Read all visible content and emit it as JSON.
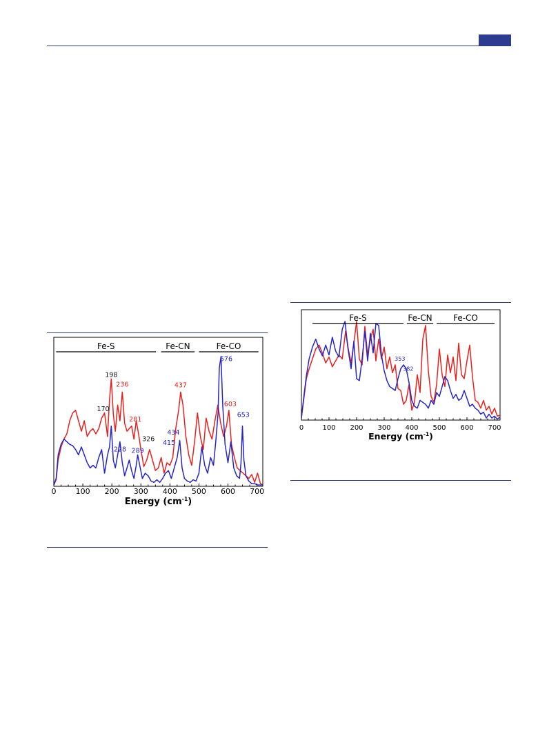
{
  "page": {
    "header_tab_color": "#2d3c8e",
    "rule_color": "#2e3a78"
  },
  "chart_data": [
    {
      "type": "line",
      "xlabel": "Energy (cm",
      "xlabel_sup": "-1",
      "xlabel_tail": ")",
      "xlim": [
        0,
        720
      ],
      "ylim": [
        0,
        1
      ],
      "x_ticks": [
        "0",
        "100",
        "200",
        "300",
        "400",
        "500",
        "600",
        "700"
      ],
      "regions": [
        {
          "label": "Fe-S",
          "from": 8,
          "to": 352
        },
        {
          "label": "Fe-CN",
          "from": 370,
          "to": 485
        },
        {
          "label": "Fe-CO",
          "from": 500,
          "to": 705
        }
      ],
      "peak_labels": [
        {
          "text": "198",
          "x": 198,
          "y": 0.835,
          "color": "#111111"
        },
        {
          "text": "236",
          "x": 236,
          "y": 0.76,
          "color": "#e0201c"
        },
        {
          "text": "170",
          "x": 170,
          "y": 0.575,
          "color": "#111111"
        },
        {
          "text": "281",
          "x": 281,
          "y": 0.495,
          "color": "#e0201c"
        },
        {
          "text": "326",
          "x": 326,
          "y": 0.345,
          "color": "#111111"
        },
        {
          "text": "228",
          "x": 228,
          "y": 0.265,
          "color": "#2323c8"
        },
        {
          "text": "289",
          "x": 289,
          "y": 0.255,
          "color": "#2323c8"
        },
        {
          "text": "437",
          "x": 437,
          "y": 0.755,
          "color": "#e0201c"
        },
        {
          "text": "434",
          "x": 412,
          "y": 0.395,
          "color": "#2323c8"
        },
        {
          "text": "415",
          "x": 397,
          "y": 0.315,
          "color": "#2323c8"
        },
        {
          "text": "576",
          "x": 594,
          "y": 0.955,
          "color": "#2323c8"
        },
        {
          "text": "603",
          "x": 608,
          "y": 0.61,
          "color": "#e0201c"
        },
        {
          "text": "653",
          "x": 653,
          "y": 0.53,
          "color": "#2323c8"
        }
      ],
      "series": [
        {
          "color": "#e8211d",
          "x": [
            0,
            8,
            15,
            25,
            35,
            45,
            55,
            65,
            75,
            85,
            95,
            105,
            115,
            125,
            135,
            145,
            155,
            165,
            175,
            185,
            192,
            198,
            205,
            212,
            220,
            228,
            236,
            244,
            252,
            260,
            268,
            276,
            284,
            292,
            300,
            310,
            320,
            330,
            340,
            350,
            360,
            370,
            380,
            390,
            400,
            410,
            420,
            430,
            437,
            445,
            455,
            465,
            475,
            485,
            495,
            505,
            515,
            525,
            535,
            545,
            555,
            565,
            575,
            585,
            595,
            603,
            612,
            622,
            632,
            642,
            652,
            662,
            672,
            682,
            692,
            702,
            712,
            720
          ],
          "y": [
            0.01,
            0.05,
            0.2,
            0.3,
            0.36,
            0.4,
            0.5,
            0.56,
            0.58,
            0.5,
            0.42,
            0.5,
            0.38,
            0.42,
            0.44,
            0.4,
            0.44,
            0.52,
            0.56,
            0.38,
            0.66,
            0.82,
            0.55,
            0.42,
            0.62,
            0.5,
            0.72,
            0.48,
            0.42,
            0.44,
            0.46,
            0.36,
            0.5,
            0.4,
            0.28,
            0.15,
            0.2,
            0.28,
            0.2,
            0.12,
            0.14,
            0.22,
            0.1,
            0.18,
            0.16,
            0.22,
            0.44,
            0.58,
            0.72,
            0.62,
            0.38,
            0.24,
            0.16,
            0.34,
            0.56,
            0.38,
            0.28,
            0.52,
            0.42,
            0.36,
            0.5,
            0.62,
            0.48,
            0.38,
            0.46,
            0.58,
            0.32,
            0.22,
            0.14,
            0.12,
            0.1,
            0.08,
            0.06,
            0.09,
            0.03,
            0.1,
            0.02,
            0.01
          ]
        },
        {
          "color": "#2525c8",
          "x": [
            0,
            8,
            15,
            25,
            35,
            45,
            55,
            65,
            75,
            85,
            95,
            105,
            115,
            125,
            135,
            145,
            155,
            165,
            175,
            185,
            192,
            198,
            205,
            212,
            220,
            228,
            236,
            244,
            252,
            260,
            268,
            276,
            284,
            289,
            296,
            305,
            315,
            325,
            335,
            345,
            355,
            365,
            375,
            385,
            395,
            405,
            415,
            425,
            434,
            442,
            450,
            460,
            470,
            480,
            490,
            500,
            510,
            520,
            530,
            540,
            550,
            558,
            566,
            570,
            576,
            582,
            590,
            600,
            610,
            620,
            630,
            640,
            645,
            650,
            655,
            662,
            672,
            682,
            692,
            702,
            712,
            720
          ],
          "y": [
            0.01,
            0.06,
            0.24,
            0.32,
            0.36,
            0.34,
            0.32,
            0.31,
            0.28,
            0.24,
            0.3,
            0.24,
            0.18,
            0.14,
            0.16,
            0.14,
            0.22,
            0.28,
            0.1,
            0.24,
            0.3,
            0.46,
            0.2,
            0.14,
            0.24,
            0.34,
            0.18,
            0.08,
            0.14,
            0.2,
            0.12,
            0.06,
            0.16,
            0.24,
            0.16,
            0.06,
            0.1,
            0.08,
            0.04,
            0.03,
            0.05,
            0.03,
            0.06,
            0.1,
            0.12,
            0.06,
            0.14,
            0.22,
            0.35,
            0.14,
            0.06,
            0.04,
            0.03,
            0.05,
            0.04,
            0.1,
            0.3,
            0.16,
            0.1,
            0.22,
            0.16,
            0.34,
            0.56,
            0.9,
            0.99,
            0.62,
            0.32,
            0.18,
            0.34,
            0.14,
            0.08,
            0.06,
            0.18,
            0.46,
            0.2,
            0.08,
            0.04,
            0.02,
            0.02,
            0.01,
            0.01,
            0.01
          ]
        }
      ]
    },
    {
      "type": "line",
      "xlabel": "Energy (cm",
      "xlabel_sup": "-1",
      "xlabel_tail": ")",
      "xlim": [
        0,
        720
      ],
      "ylim": [
        0,
        1
      ],
      "x_ticks": [
        "0",
        "100",
        "200",
        "300",
        "400",
        "500",
        "600",
        "700"
      ],
      "regions": [
        {
          "label": "Fe-S",
          "from": 40,
          "to": 370
        },
        {
          "label": "Fe-CN",
          "from": 382,
          "to": 478
        },
        {
          "label": "Fe-CO",
          "from": 490,
          "to": 700
        }
      ],
      "peak_labels": [
        {
          "text": "353",
          "x": 357,
          "y": 0.6,
          "color": "#2323c8"
        },
        {
          "text": "382",
          "x": 387,
          "y": 0.5,
          "color": "#2323c8"
        }
      ],
      "series": [
        {
          "color": "#e8211d",
          "x": [
            0,
            8,
            18,
            28,
            40,
            52,
            64,
            76,
            88,
            100,
            112,
            124,
            136,
            148,
            160,
            170,
            180,
            190,
            200,
            210,
            220,
            230,
            240,
            250,
            260,
            270,
            280,
            290,
            300,
            310,
            320,
            330,
            340,
            350,
            360,
            370,
            380,
            390,
            400,
            410,
            420,
            430,
            440,
            450,
            460,
            470,
            480,
            490,
            500,
            510,
            520,
            530,
            540,
            550,
            560,
            570,
            580,
            590,
            600,
            610,
            620,
            630,
            640,
            650,
            660,
            670,
            680,
            690,
            700,
            710,
            720
          ],
          "y": [
            0.02,
            0.2,
            0.42,
            0.52,
            0.62,
            0.72,
            0.76,
            0.68,
            0.58,
            0.64,
            0.54,
            0.6,
            0.66,
            0.62,
            0.9,
            0.72,
            0.58,
            0.78,
            1.0,
            0.62,
            0.56,
            0.95,
            0.66,
            0.82,
            0.92,
            0.6,
            0.82,
            0.62,
            0.74,
            0.52,
            0.64,
            0.48,
            0.56,
            0.32,
            0.3,
            0.16,
            0.2,
            0.36,
            0.1,
            0.18,
            0.46,
            0.28,
            0.82,
            0.96,
            0.5,
            0.24,
            0.18,
            0.36,
            0.72,
            0.46,
            0.34,
            0.66,
            0.48,
            0.64,
            0.4,
            0.78,
            0.46,
            0.42,
            0.6,
            0.76,
            0.44,
            0.2,
            0.18,
            0.12,
            0.2,
            0.1,
            0.14,
            0.06,
            0.12,
            0.04,
            0.05
          ]
        },
        {
          "color": "#2525c8",
          "x": [
            0,
            8,
            18,
            28,
            40,
            52,
            64,
            76,
            88,
            100,
            112,
            124,
            136,
            148,
            158,
            168,
            180,
            190,
            200,
            210,
            220,
            230,
            240,
            250,
            260,
            270,
            280,
            290,
            300,
            310,
            320,
            330,
            340,
            350,
            360,
            370,
            380,
            390,
            400,
            410,
            420,
            430,
            440,
            450,
            460,
            470,
            480,
            490,
            500,
            510,
            520,
            530,
            540,
            550,
            560,
            570,
            580,
            590,
            600,
            610,
            620,
            630,
            640,
            650,
            660,
            670,
            680,
            690,
            700,
            710,
            720
          ],
          "y": [
            0.02,
            0.22,
            0.45,
            0.62,
            0.74,
            0.82,
            0.72,
            0.65,
            0.76,
            0.66,
            0.84,
            0.7,
            0.64,
            0.92,
            1.0,
            0.74,
            0.52,
            0.8,
            0.42,
            0.4,
            0.62,
            0.9,
            0.6,
            0.88,
            0.68,
            0.98,
            0.96,
            0.66,
            0.5,
            0.4,
            0.34,
            0.32,
            0.3,
            0.42,
            0.52,
            0.56,
            0.52,
            0.38,
            0.2,
            0.14,
            0.12,
            0.2,
            0.18,
            0.16,
            0.12,
            0.2,
            0.16,
            0.28,
            0.24,
            0.34,
            0.44,
            0.4,
            0.3,
            0.22,
            0.26,
            0.2,
            0.22,
            0.3,
            0.22,
            0.14,
            0.16,
            0.12,
            0.1,
            0.06,
            0.08,
            0.02,
            0.06,
            0.02,
            0.04,
            0.01,
            0.03
          ]
        }
      ]
    }
  ]
}
